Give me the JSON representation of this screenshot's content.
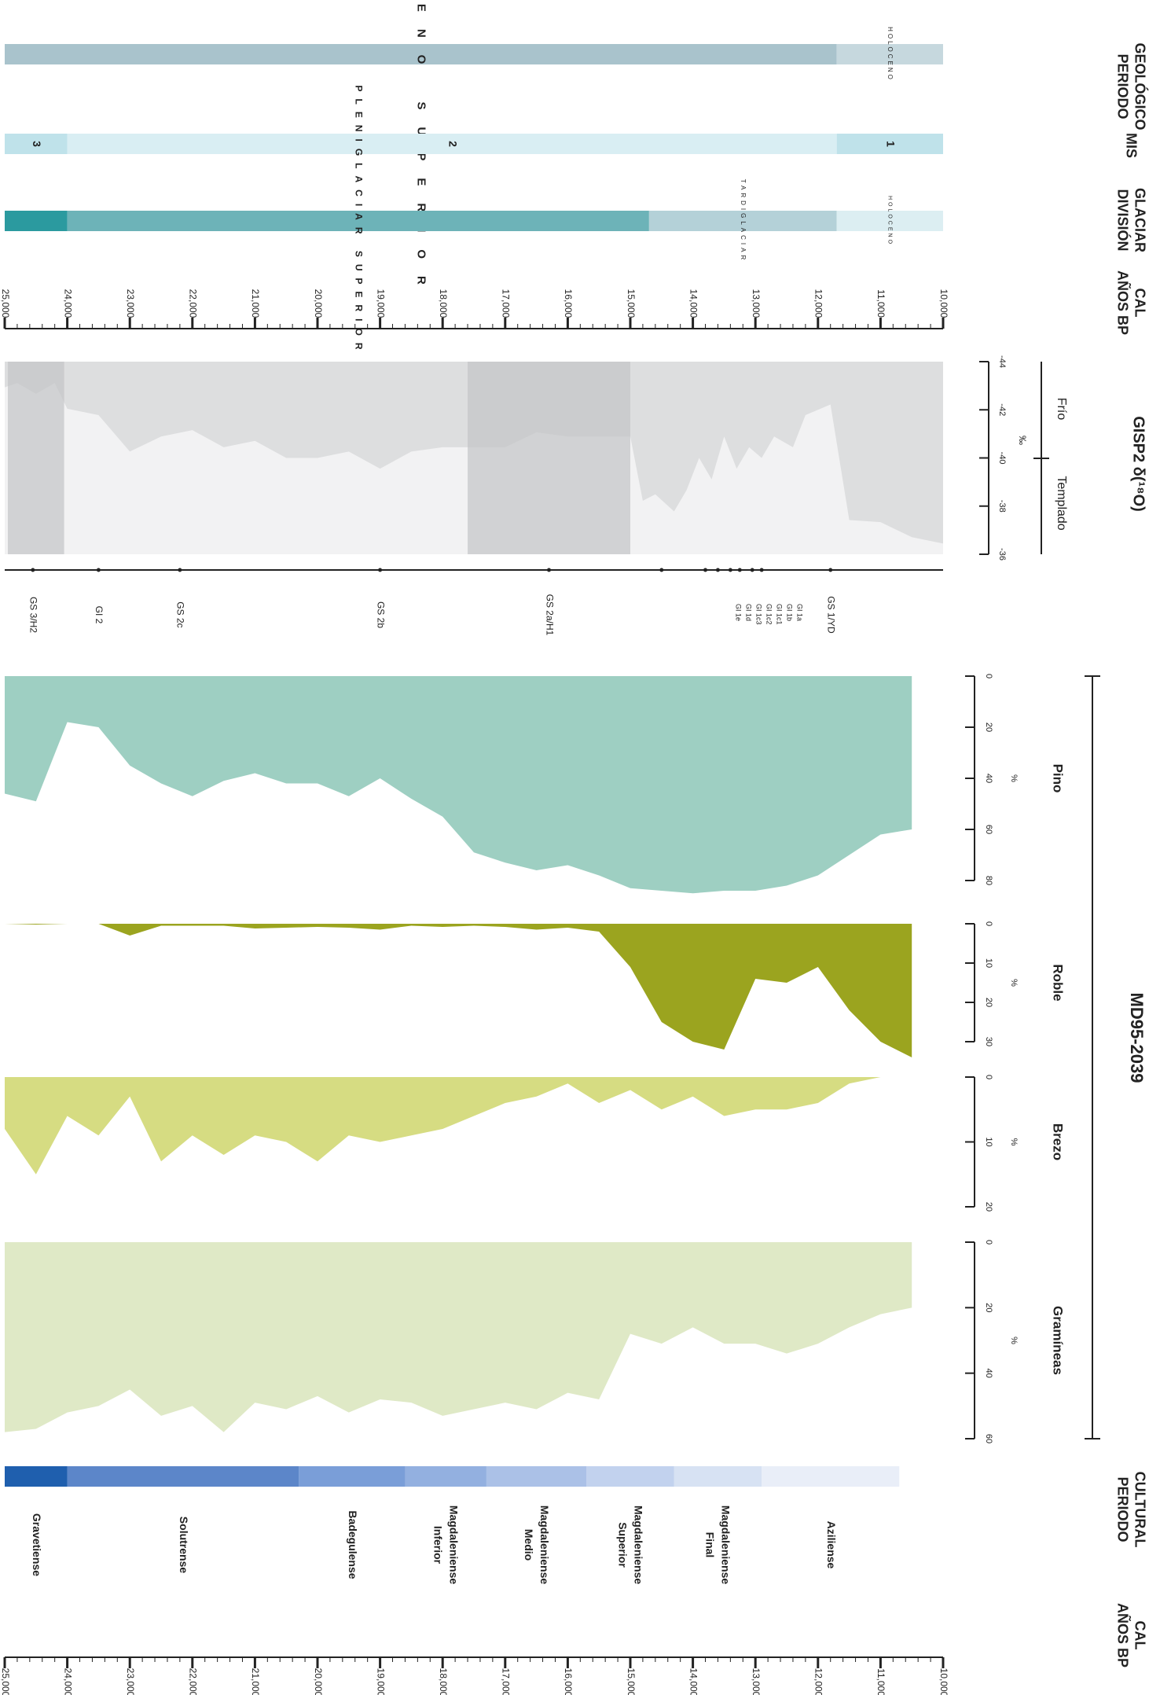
{
  "headers": {
    "periodo_geologico": [
      "PERIODO",
      "GEOLÓGICO"
    ],
    "mis": "MIS",
    "division_glaciar": [
      "DIVISIÓN",
      "GLACIAR"
    ],
    "anos_bp": [
      "AÑOS BP",
      "CAL"
    ],
    "gisp2": "GISP2 δ(¹⁸O)",
    "md95": "MD95-2039",
    "periodo_cultural": [
      "PERIODO",
      "CULTURAL"
    ],
    "anos_bp_2": [
      "AÑOS BP",
      "CAL"
    ]
  },
  "periodo_geologico": {
    "holoceno": "HOLOCENO",
    "pleistoceno": "PLEISTOCENO SUPERIOR"
  },
  "mis": {
    "stages": [
      "1",
      "2",
      "3"
    ]
  },
  "division_glaciar": {
    "holoceno": "HOLOCENO",
    "tardiglaciar": "TARDIGLACIAR",
    "pleniglaciar": "PLENIGLACIAR SUPERIOR"
  },
  "time_axis": {
    "ticks": [
      "10,000",
      "11,000",
      "12,000",
      "13,000",
      "14,000",
      "15,000",
      "16,000",
      "17,000",
      "18,000",
      "19,000",
      "20,000",
      "21,000",
      "22,000",
      "23,000",
      "24,000",
      "25,000"
    ]
  },
  "gisp2": {
    "ticks": [
      "-44",
      "-42",
      "-40",
      "-38",
      "-36"
    ],
    "unit": "‰",
    "frio": "Frío",
    "templado": "Templado"
  },
  "events": {
    "labels": [
      "GS 1/YD",
      "GI 1a",
      "GI 1b",
      "GI 1c1",
      "GI 1c2",
      "GI 1c3",
      "GI 1d",
      "GI 1e",
      "GS 2a/H1",
      "GS 2b",
      "GS 2c",
      "GI 2",
      "GS 3/H2"
    ],
    "colors": [
      "#1aa3d9",
      "#222222",
      "#222222",
      "#222222",
      "#222222",
      "#222222",
      "#222222",
      "#222222",
      "#1aa3d9",
      "#1aa3d9",
      "#1aa3d9",
      "#222222",
      "#1aa3d9"
    ]
  },
  "pollen": {
    "pino": {
      "name": "Pino",
      "unit": "%",
      "ticks": [
        "0",
        "20",
        "40",
        "60",
        "80"
      ]
    },
    "roble": {
      "name": "Roble",
      "unit": "%",
      "ticks": [
        "0",
        "10",
        "20",
        "30"
      ]
    },
    "brezo": {
      "name": "Brezo",
      "unit": "%",
      "ticks": [
        "0",
        "10",
        "20"
      ]
    },
    "gramineas": {
      "name": "Gramíneas",
      "unit": "%",
      "ticks": [
        "0",
        "20",
        "40",
        "60"
      ]
    }
  },
  "cultural": [
    "Aziliense",
    "Magdaleniense Final",
    "Magdaleniense Superior",
    "Magdaleniense Medio",
    "Magdaleniense Inferior",
    "Badegulense",
    "Solutrense",
    "Gravetiense"
  ],
  "colors": {
    "geo_band": "#a9c3cc",
    "geo_holo": "#c6d8de",
    "mis_light": "#d9eef3",
    "mis_mid": "#bfe2ea",
    "div_holo": "#dceef2",
    "div_tardi": "#b4d1d8",
    "div_pleni": "#6db3b8",
    "div_dark": "#2b9a9f",
    "gisp_fill": "#e5e6e7",
    "gisp_shade": "#c3c4c6",
    "pino": "#9ecfc2",
    "roble": "#9ba41f",
    "brezo": "#d6dc82",
    "gramineas": "#dfe9c6",
    "cultural": [
      "#e9eef8",
      "#d7e2f3",
      "#c2d2ee",
      "#abc1e7",
      "#93b0e0",
      "#7a9ed8",
      "#5c86c9",
      "#1f5fae"
    ]
  },
  "chart_data": [
    {
      "type": "area",
      "title": "GISP2 δ(¹⁸O)",
      "xlabel": "AÑOS BP CAL",
      "ylabel": "‰",
      "ylim": [
        -44,
        -35
      ],
      "x": [
        10000,
        10500,
        11000,
        11500,
        11800,
        12200,
        12400,
        12700,
        12900,
        13100,
        13300,
        13500,
        13700,
        13900,
        14100,
        14300,
        14600,
        14800,
        15000,
        15500,
        16000,
        16500,
        17000,
        17500,
        18000,
        18500,
        19000,
        19500,
        20000,
        20500,
        21000,
        21500,
        22000,
        22500,
        23000,
        23500,
        24000,
        24200,
        24500,
        24800,
        25000
      ],
      "series": [
        {
          "name": "GISP2 δ(¹⁸O)",
          "values": [
            -35.5,
            -35.8,
            -36.5,
            -36.6,
            -42.0,
            -41.5,
            -40.0,
            -40.5,
            -39.5,
            -40.0,
            -39.0,
            -40.5,
            -38.5,
            -39.5,
            -38.0,
            -37.0,
            -37.8,
            -37.5,
            -40.5,
            -40.5,
            -40.5,
            -40.7,
            -40.0,
            -40.0,
            -40.0,
            -39.8,
            -39.0,
            -39.8,
            -39.5,
            -39.5,
            -40.3,
            -40.0,
            -40.8,
            -40.5,
            -39.8,
            -41.5,
            -41.8,
            -43.0,
            -42.5,
            -43.0,
            -42.8
          ]
        }
      ],
      "shaded": [
        {
          "label": "GS 2a/H1",
          "from": 15000,
          "to": 17600
        },
        {
          "label": "GS 3/H2",
          "from": 24050,
          "to": 24950
        }
      ]
    },
    {
      "type": "area",
      "title": "MD95-2039",
      "xlabel": "AÑOS BP CAL",
      "ylabel": "%",
      "x": [
        10500,
        11000,
        11500,
        12000,
        12500,
        13000,
        13500,
        14000,
        14500,
        15000,
        15500,
        16000,
        16500,
        17000,
        17500,
        18000,
        18500,
        19000,
        19500,
        20000,
        20500,
        21000,
        21500,
        22000,
        22500,
        23000,
        23500,
        24000,
        24500,
        25000
      ],
      "series": [
        {
          "name": "Pino",
          "values": [
            60,
            62,
            70,
            78,
            82,
            84,
            84,
            85,
            84,
            83,
            78,
            74,
            76,
            73,
            69,
            55,
            48,
            40,
            47,
            42,
            42,
            38,
            41,
            47,
            42,
            35,
            20,
            18,
            49,
            46
          ]
        },
        {
          "name": "Roble",
          "values": [
            34,
            30,
            22,
            11,
            15,
            14,
            32,
            30,
            25,
            11,
            2,
            1,
            1.5,
            0.8,
            0.5,
            0.8,
            0.5,
            1.5,
            1,
            0.8,
            1,
            1.2,
            0.5,
            0.5,
            0.5,
            3,
            0,
            0,
            0.2,
            0
          ]
        },
        {
          "name": "Brezo",
          "values": [
            0,
            0,
            1,
            4,
            5,
            5,
            6,
            3,
            5,
            2,
            4,
            1,
            3,
            4,
            6,
            8,
            9,
            10,
            9,
            13,
            10,
            9,
            12,
            9,
            13,
            3,
            9,
            6,
            15,
            8
          ]
        },
        {
          "name": "Gramíneas",
          "values": [
            20,
            22,
            26,
            31,
            34,
            31,
            31,
            26,
            31,
            28,
            48,
            46,
            51,
            49,
            51,
            53,
            49,
            48,
            52,
            47,
            51,
            49,
            58,
            50,
            53,
            45,
            50,
            52,
            57,
            58
          ]
        }
      ]
    }
  ]
}
